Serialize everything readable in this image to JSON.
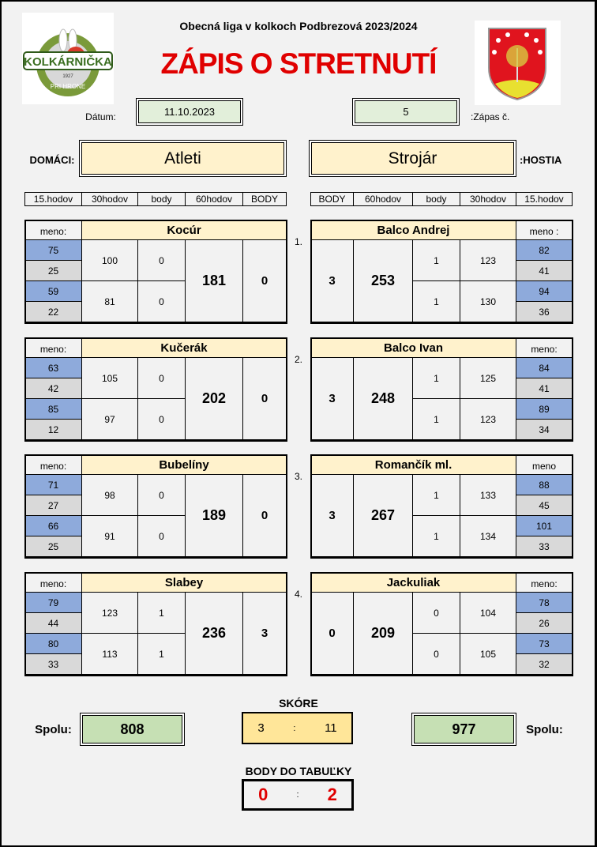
{
  "header": {
    "league": "Obecná liga v kolkoch Podbrezová 2023/2024",
    "title": "ZÁPIS O STRETNUTÍ",
    "logo_left_text": "KOLKÁRNIČKA",
    "logo_left_year": "1927",
    "logo_left_sub": "PRI HRONE",
    "date_label": "Dátum:",
    "date": "11.10.2023",
    "match_no": "5",
    "match_no_label": ":Zápas č.",
    "home_label": "DOMÁCI:",
    "home_team": "Atleti",
    "away_team": "Strojár",
    "away_label": ":HOSTIA"
  },
  "columns_home": [
    "15.hodov",
    "30hodov",
    "body",
    "60hodov",
    "BODY"
  ],
  "columns_away": [
    "BODY",
    "60hodov",
    "body",
    "30hodov",
    "15.hodov"
  ],
  "matches": [
    {
      "no": "1.",
      "home": {
        "meno": "meno:",
        "name": "Kocúr",
        "h15": [
          "75",
          "25",
          "59",
          "22"
        ],
        "h30": [
          "100",
          "81"
        ],
        "body": [
          "0",
          "0"
        ],
        "total": "181",
        "points": "0"
      },
      "away": {
        "meno": "meno :",
        "name": "Balco Andrej",
        "h15": [
          "82",
          "41",
          "94",
          "36"
        ],
        "h30": [
          "123",
          "130"
        ],
        "body": [
          "1",
          "1"
        ],
        "total": "253",
        "points": "3"
      }
    },
    {
      "no": "2.",
      "home": {
        "meno": "meno:",
        "name": "Kučerák",
        "h15": [
          "63",
          "42",
          "85",
          "12"
        ],
        "h30": [
          "105",
          "97"
        ],
        "body": [
          "0",
          "0"
        ],
        "total": "202",
        "points": "0"
      },
      "away": {
        "meno": "meno:",
        "name": "Balco Ivan",
        "h15": [
          "84",
          "41",
          "89",
          "34"
        ],
        "h30": [
          "125",
          "123"
        ],
        "body": [
          "1",
          "1"
        ],
        "total": "248",
        "points": "3"
      }
    },
    {
      "no": "3.",
      "home": {
        "meno": "meno:",
        "name": "Bubelíny",
        "h15": [
          "71",
          "27",
          "66",
          "25"
        ],
        "h30": [
          "98",
          "91"
        ],
        "body": [
          "0",
          "0"
        ],
        "total": "189",
        "points": "0"
      },
      "away": {
        "meno": "meno",
        "name": "Romančík ml.",
        "h15": [
          "88",
          "45",
          "101",
          "33"
        ],
        "h30": [
          "133",
          "134"
        ],
        "body": [
          "1",
          "1"
        ],
        "total": "267",
        "points": "3"
      }
    },
    {
      "no": "4.",
      "home": {
        "meno": "meno:",
        "name": "Slabey",
        "h15": [
          "79",
          "44",
          "80",
          "33"
        ],
        "h30": [
          "123",
          "113"
        ],
        "body": [
          "1",
          "1"
        ],
        "total": "236",
        "points": "3"
      },
      "away": {
        "meno": "meno:",
        "name": "Jackuliak",
        "h15": [
          "78",
          "26",
          "73",
          "32"
        ],
        "h30": [
          "104",
          "105"
        ],
        "body": [
          "0",
          "0"
        ],
        "total": "209",
        "points": "0"
      }
    }
  ],
  "footer": {
    "spolu_label": "Spolu:",
    "home_total": "808",
    "away_total": "977",
    "score_label": "SKÓRE",
    "score_home": "3",
    "score_sep": ":",
    "score_away": "11",
    "table_label": "BODY DO TABUĽKY",
    "table_home": "0",
    "table_away": "2"
  },
  "colors": {
    "title_red": "#e00000",
    "blue": "#8eaadb",
    "gray": "#d9d9d9",
    "yellow": "#fff2cc",
    "green": "#c6e0b4",
    "date_green": "#e2efda",
    "score_yellow": "#ffe699"
  }
}
